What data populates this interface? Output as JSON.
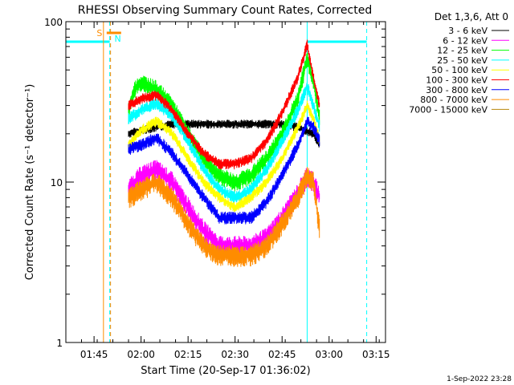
{
  "chart_data": {
    "type": "line",
    "title": "RHESSI Observing Summary Count Rates, Corrected",
    "xlabel": "Start Time (20-Sep-17 01:36:02)",
    "ylabel": "Corrected Count Rate (s⁻¹ detector⁻¹)",
    "y_scale": "log",
    "ylim": [
      1,
      100
    ],
    "xlim": [
      "01:36",
      "03:18"
    ],
    "y_ticks": [
      "1",
      "10",
      "100"
    ],
    "x_ticks": [
      {
        "t": "01:45",
        "label": "01:45"
      },
      {
        "t": "02:00",
        "label": "02:00"
      },
      {
        "t": "02:15",
        "label": "02:15"
      },
      {
        "t": "02:30",
        "label": "02:30"
      },
      {
        "t": "02:45",
        "label": "02:45"
      },
      {
        "t": "03:00",
        "label": "03:00"
      },
      {
        "t": "03:15",
        "label": "03:15"
      }
    ],
    "legend_title": "Det 1,3,6, Att 0",
    "legend_position": "top-right",
    "series": [
      {
        "name": "3 - 6 keV",
        "color": "#000000",
        "jitter": 0.05,
        "points": [
          [
            "01:56",
            20
          ],
          [
            "02:00",
            21
          ],
          [
            "02:10",
            23
          ],
          [
            "02:20",
            23
          ],
          [
            "02:30",
            23
          ],
          [
            "02:40",
            23
          ],
          [
            "02:45",
            23
          ],
          [
            "02:50",
            22
          ],
          [
            "02:55",
            20
          ],
          [
            "02:57",
            17
          ]
        ]
      },
      {
        "name": "6 - 12 keV",
        "color": "#ff00ff",
        "jitter": 0.12,
        "points": [
          [
            "01:56",
            9
          ],
          [
            "02:00",
            11
          ],
          [
            "02:05",
            12
          ],
          [
            "02:10",
            10
          ],
          [
            "02:15",
            7
          ],
          [
            "02:20",
            5
          ],
          [
            "02:25",
            4
          ],
          [
            "02:30",
            4
          ],
          [
            "02:35",
            4
          ],
          [
            "02:40",
            4.5
          ],
          [
            "02:45",
            6
          ],
          [
            "02:50",
            8.5
          ],
          [
            "02:53",
            11
          ],
          [
            "02:55",
            10
          ],
          [
            "02:57",
            8
          ]
        ]
      },
      {
        "name": "12 - 25 keV",
        "color": "#00ff00",
        "jitter": 0.1,
        "points": [
          [
            "01:56",
            28
          ],
          [
            "01:58",
            38
          ],
          [
            "02:00",
            42
          ],
          [
            "02:05",
            38
          ],
          [
            "02:10",
            30
          ],
          [
            "02:15",
            20
          ],
          [
            "02:20",
            14
          ],
          [
            "02:25",
            11
          ],
          [
            "02:30",
            10
          ],
          [
            "02:35",
            11
          ],
          [
            "02:40",
            14
          ],
          [
            "02:45",
            20
          ],
          [
            "02:50",
            33
          ],
          [
            "02:53",
            60
          ],
          [
            "02:55",
            42
          ],
          [
            "02:57",
            25
          ]
        ]
      },
      {
        "name": "25 - 50 keV",
        "color": "#00ffff",
        "jitter": 0.07,
        "points": [
          [
            "01:56",
            25
          ],
          [
            "02:00",
            28
          ],
          [
            "02:05",
            31
          ],
          [
            "02:10",
            26
          ],
          [
            "02:15",
            18
          ],
          [
            "02:20",
            12
          ],
          [
            "02:25",
            9
          ],
          [
            "02:30",
            8
          ],
          [
            "02:35",
            9
          ],
          [
            "02:40",
            12
          ],
          [
            "02:45",
            18
          ],
          [
            "02:50",
            28
          ],
          [
            "02:53",
            40
          ],
          [
            "02:55",
            30
          ],
          [
            "02:57",
            22
          ]
        ]
      },
      {
        "name": "50 - 100 keV",
        "color": "#ffff00",
        "jitter": 0.06,
        "points": [
          [
            "01:56",
            17
          ],
          [
            "02:00",
            21
          ],
          [
            "02:05",
            24
          ],
          [
            "02:10",
            20
          ],
          [
            "02:15",
            14
          ],
          [
            "02:20",
            10
          ],
          [
            "02:25",
            8
          ],
          [
            "02:30",
            7
          ],
          [
            "02:35",
            8
          ],
          [
            "02:40",
            10
          ],
          [
            "02:45",
            14
          ],
          [
            "02:50",
            22
          ],
          [
            "02:53",
            30
          ],
          [
            "02:55",
            25
          ],
          [
            "02:57",
            18
          ]
        ]
      },
      {
        "name": "100 - 300 keV",
        "color": "#ff0000",
        "jitter": 0.06,
        "points": [
          [
            "01:56",
            30
          ],
          [
            "02:00",
            33
          ],
          [
            "02:05",
            35
          ],
          [
            "02:10",
            28
          ],
          [
            "02:15",
            20
          ],
          [
            "02:20",
            15
          ],
          [
            "02:25",
            13
          ],
          [
            "02:30",
            13
          ],
          [
            "02:35",
            14
          ],
          [
            "02:40",
            18
          ],
          [
            "02:45",
            27
          ],
          [
            "02:50",
            45
          ],
          [
            "02:53",
            72
          ],
          [
            "02:55",
            45
          ],
          [
            "02:57",
            30
          ]
        ]
      },
      {
        "name": "300 - 800 keV",
        "color": "#0000ff",
        "jitter": 0.07,
        "points": [
          [
            "01:56",
            16
          ],
          [
            "02:00",
            17
          ],
          [
            "02:05",
            19
          ],
          [
            "02:10",
            15
          ],
          [
            "02:15",
            11
          ],
          [
            "02:20",
            8
          ],
          [
            "02:25",
            6
          ],
          [
            "02:30",
            6
          ],
          [
            "02:35",
            6
          ],
          [
            "02:40",
            7.5
          ],
          [
            "02:45",
            11
          ],
          [
            "02:50",
            17
          ],
          [
            "02:53",
            24
          ],
          [
            "02:55",
            22
          ],
          [
            "02:57",
            18
          ]
        ]
      },
      {
        "name": "800 - 7000 keV",
        "color": "#ff8c00",
        "jitter": 0.12,
        "points": [
          [
            "01:56",
            8
          ],
          [
            "02:00",
            9
          ],
          [
            "02:05",
            10
          ],
          [
            "02:10",
            8
          ],
          [
            "02:15",
            5.5
          ],
          [
            "02:20",
            4
          ],
          [
            "02:25",
            3.5
          ],
          [
            "02:30",
            3.5
          ],
          [
            "02:35",
            3.5
          ],
          [
            "02:40",
            4
          ],
          [
            "02:45",
            5.5
          ],
          [
            "02:50",
            8
          ],
          [
            "02:53",
            11
          ],
          [
            "02:55",
            10
          ],
          [
            "02:57",
            5
          ]
        ]
      },
      {
        "name": "7000 - 15000 keV",
        "color": "#b8860b",
        "jitter": 0.0,
        "points": []
      }
    ],
    "annotations": [
      {
        "label": "S",
        "color": "#ff8c00",
        "t_start": "01:47",
        "t_end": "01:49"
      },
      {
        "label": "N",
        "color": "#00ffff",
        "t": "01:50"
      }
    ],
    "night_bars": [
      {
        "t_start": "01:36",
        "t_end": "01:50",
        "y": 75,
        "color": "#00ffff"
      },
      {
        "t_start": "02:53",
        "t_end": "03:12",
        "y": 75,
        "color": "#00ffff"
      }
    ],
    "vertical_markers": [
      {
        "t": "01:36",
        "color": "#00ffff",
        "dashed": false
      },
      {
        "t": "01:48",
        "color": "#ff8c00",
        "dashed": false
      },
      {
        "t": "01:50",
        "color": "#00ffff",
        "dashed": true
      },
      {
        "t": "01:50",
        "color": "#ff8c00",
        "dashed": true
      },
      {
        "t": "02:53",
        "color": "#00ffff",
        "dashed": false
      },
      {
        "t": "03:12",
        "color": "#00ffff",
        "dashed": true
      }
    ]
  },
  "footer": {
    "timestamp": "1-Sep-2022 23:28"
  }
}
